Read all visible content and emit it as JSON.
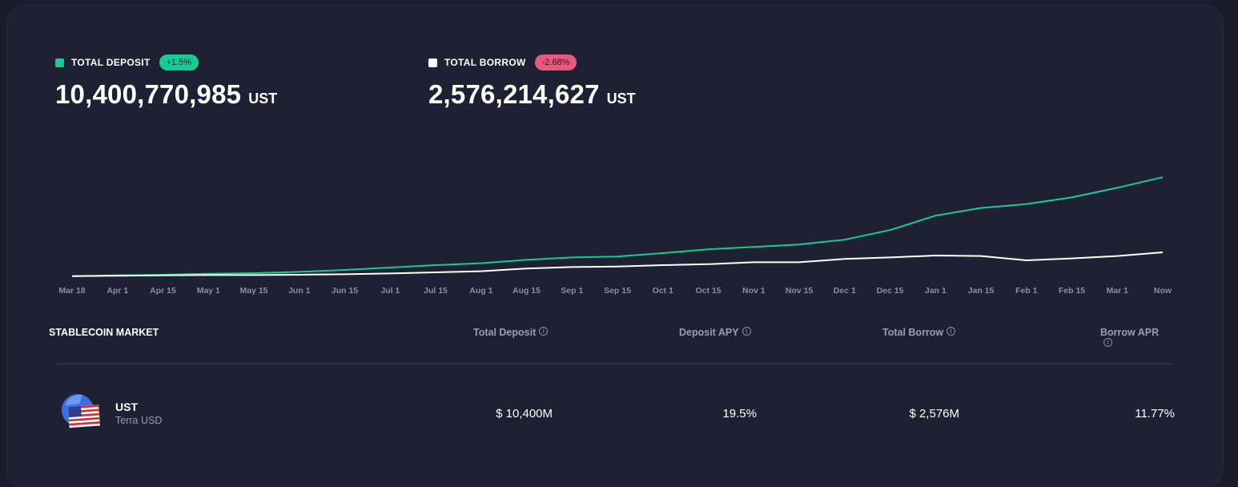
{
  "stats": {
    "deposit": {
      "label": "TOTAL DEPOSIT",
      "change": "+1.5%",
      "value": "10,400,770,985",
      "unit": "UST",
      "color": "#15cc93"
    },
    "borrow": {
      "label": "TOTAL BORROW",
      "change": "-2.68%",
      "value": "2,576,214,627",
      "unit": "UST",
      "color": "#ffffff",
      "badge_color": "#e95979"
    }
  },
  "chart_data": {
    "type": "line",
    "x_tick_labels": [
      "Mar 18",
      "Apr 1",
      "Apr 15",
      "May 1",
      "May 15",
      "Jun 1",
      "Jun 15",
      "Jul 1",
      "Jul 15",
      "Aug 1",
      "Aug 15",
      "Sep 1",
      "Sep 15",
      "Oct 1",
      "Oct 15",
      "Nov 1",
      "Nov 15",
      "Dec 1",
      "Dec 15",
      "Jan 1",
      "Jan 15",
      "Feb 1",
      "Feb 15",
      "Mar 1",
      "Now"
    ],
    "series": [
      {
        "color": "#15cc93",
        "values": [
          0.1,
          0.18,
          0.25,
          0.35,
          0.42,
          0.55,
          0.75,
          1.0,
          1.25,
          1.45,
          1.8,
          2.05,
          2.15,
          2.5,
          2.9,
          3.15,
          3.4,
          3.9,
          4.9,
          6.4,
          7.2,
          7.6,
          8.3,
          9.3,
          10.4
        ]
      },
      {
        "color": "#ffffff",
        "values": [
          0.1,
          0.15,
          0.18,
          0.22,
          0.22,
          0.25,
          0.3,
          0.38,
          0.5,
          0.62,
          0.9,
          1.05,
          1.1,
          1.25,
          1.35,
          1.55,
          1.55,
          1.9,
          2.05,
          2.25,
          2.2,
          1.75,
          1.95,
          2.2,
          2.58
        ]
      }
    ],
    "y_range": [
      0,
      13
    ],
    "grid": false,
    "legend": "none"
  },
  "table": {
    "title": "STABLECOIN MARKET",
    "columns": [
      "Total Deposit",
      "Deposit APY",
      "Total Borrow",
      "Borrow APR"
    ],
    "rows": [
      {
        "symbol": "UST",
        "name": "Terra USD",
        "icon": "ust-flag-icon",
        "total_deposit": "$ 10,400M",
        "deposit_apy": "19.5%",
        "total_borrow": "$ 2,576M",
        "borrow_apr": "11.77%"
      }
    ]
  }
}
